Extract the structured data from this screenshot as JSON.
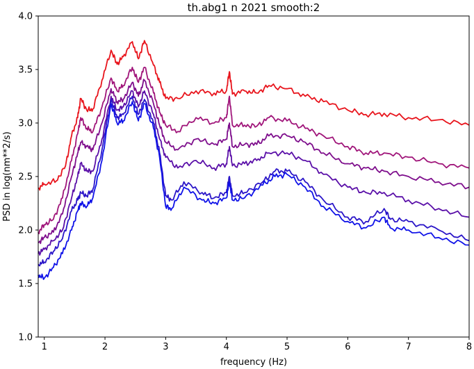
{
  "chart_data": {
    "type": "line",
    "title": "th.abg1 n 2021 smooth:2",
    "xlabel": "frequency (Hz)",
    "ylabel": "PSD in log(nm**2/s)",
    "xlim": [
      0.9,
      8.0
    ],
    "ylim": [
      1.0,
      4.0
    ],
    "xticks": [
      1,
      2,
      3,
      4,
      5,
      6,
      7,
      8
    ],
    "xtick_labels": [
      "1",
      "2",
      "3",
      "4",
      "5",
      "6",
      "7",
      "8"
    ],
    "yticks": [
      1.0,
      1.5,
      2.0,
      2.5,
      3.0,
      3.5,
      4.0
    ],
    "ytick_labels": [
      "1.0",
      "1.5",
      "2.0",
      "2.5",
      "3.0",
      "3.5",
      "4.0"
    ],
    "grid": false,
    "series": [
      {
        "color": "#e8141c",
        "points": [
          [
            0.9,
            2.39
          ],
          [
            1.0,
            2.43
          ],
          [
            1.2,
            2.46
          ],
          [
            1.35,
            2.6
          ],
          [
            1.45,
            2.88
          ],
          [
            1.55,
            3.05
          ],
          [
            1.6,
            3.23
          ],
          [
            1.7,
            3.12
          ],
          [
            1.8,
            3.13
          ],
          [
            1.95,
            3.4
          ],
          [
            2.1,
            3.68
          ],
          [
            2.2,
            3.55
          ],
          [
            2.3,
            3.62
          ],
          [
            2.45,
            3.76
          ],
          [
            2.55,
            3.6
          ],
          [
            2.65,
            3.77
          ],
          [
            2.8,
            3.54
          ],
          [
            2.9,
            3.38
          ],
          [
            3.0,
            3.23
          ],
          [
            3.2,
            3.23
          ],
          [
            3.5,
            3.3
          ],
          [
            3.8,
            3.28
          ],
          [
            4.0,
            3.3
          ],
          [
            4.05,
            3.48
          ],
          [
            4.1,
            3.27
          ],
          [
            4.3,
            3.3
          ],
          [
            4.5,
            3.28
          ],
          [
            4.7,
            3.35
          ],
          [
            5.0,
            3.32
          ],
          [
            5.3,
            3.25
          ],
          [
            5.6,
            3.2
          ],
          [
            6.0,
            3.12
          ],
          [
            6.3,
            3.08
          ],
          [
            6.6,
            3.09
          ],
          [
            7.0,
            3.05
          ],
          [
            7.5,
            3.03
          ],
          [
            8.0,
            2.98
          ]
        ]
      },
      {
        "color": "#a0157a",
        "points": [
          [
            0.9,
            1.98
          ],
          [
            1.0,
            2.05
          ],
          [
            1.15,
            2.1
          ],
          [
            1.3,
            2.3
          ],
          [
            1.45,
            2.65
          ],
          [
            1.55,
            2.9
          ],
          [
            1.6,
            3.05
          ],
          [
            1.7,
            2.95
          ],
          [
            1.8,
            2.92
          ],
          [
            1.95,
            3.15
          ],
          [
            2.1,
            3.42
          ],
          [
            2.2,
            3.3
          ],
          [
            2.3,
            3.35
          ],
          [
            2.45,
            3.52
          ],
          [
            2.55,
            3.38
          ],
          [
            2.65,
            3.52
          ],
          [
            2.8,
            3.28
          ],
          [
            2.9,
            3.1
          ],
          [
            3.0,
            2.98
          ],
          [
            3.2,
            2.92
          ],
          [
            3.5,
            3.05
          ],
          [
            3.8,
            3.0
          ],
          [
            4.0,
            3.05
          ],
          [
            4.05,
            3.25
          ],
          [
            4.1,
            2.98
          ],
          [
            4.3,
            2.98
          ],
          [
            4.5,
            2.97
          ],
          [
            4.7,
            3.05
          ],
          [
            5.0,
            3.02
          ],
          [
            5.3,
            2.95
          ],
          [
            5.6,
            2.88
          ],
          [
            6.0,
            2.78
          ],
          [
            6.3,
            2.72
          ],
          [
            6.6,
            2.72
          ],
          [
            7.0,
            2.68
          ],
          [
            7.5,
            2.62
          ],
          [
            8.0,
            2.58
          ]
        ]
      },
      {
        "color": "#7e0e8c",
        "points": [
          [
            0.9,
            1.88
          ],
          [
            1.0,
            1.93
          ],
          [
            1.15,
            1.98
          ],
          [
            1.3,
            2.15
          ],
          [
            1.45,
            2.5
          ],
          [
            1.55,
            2.72
          ],
          [
            1.6,
            2.82
          ],
          [
            1.7,
            2.78
          ],
          [
            1.8,
            2.75
          ],
          [
            1.95,
            3.0
          ],
          [
            2.1,
            3.32
          ],
          [
            2.2,
            3.2
          ],
          [
            2.3,
            3.22
          ],
          [
            2.45,
            3.38
          ],
          [
            2.55,
            3.25
          ],
          [
            2.65,
            3.4
          ],
          [
            2.8,
            3.18
          ],
          [
            2.9,
            2.98
          ],
          [
            3.0,
            2.82
          ],
          [
            3.2,
            2.75
          ],
          [
            3.5,
            2.85
          ],
          [
            3.8,
            2.8
          ],
          [
            4.0,
            2.85
          ],
          [
            4.05,
            3.0
          ],
          [
            4.1,
            2.78
          ],
          [
            4.3,
            2.8
          ],
          [
            4.5,
            2.8
          ],
          [
            4.7,
            2.88
          ],
          [
            5.0,
            2.88
          ],
          [
            5.3,
            2.82
          ],
          [
            5.6,
            2.72
          ],
          [
            6.0,
            2.62
          ],
          [
            6.3,
            2.58
          ],
          [
            6.6,
            2.55
          ],
          [
            7.0,
            2.5
          ],
          [
            7.5,
            2.45
          ],
          [
            8.0,
            2.4
          ]
        ]
      },
      {
        "color": "#5a0fa8",
        "points": [
          [
            0.9,
            1.78
          ],
          [
            1.0,
            1.82
          ],
          [
            1.15,
            1.9
          ],
          [
            1.3,
            2.0
          ],
          [
            1.45,
            2.3
          ],
          [
            1.55,
            2.5
          ],
          [
            1.6,
            2.62
          ],
          [
            1.7,
            2.55
          ],
          [
            1.8,
            2.55
          ],
          [
            1.95,
            2.85
          ],
          [
            2.1,
            3.25
          ],
          [
            2.2,
            3.12
          ],
          [
            2.3,
            3.15
          ],
          [
            2.45,
            3.3
          ],
          [
            2.55,
            3.15
          ],
          [
            2.65,
            3.3
          ],
          [
            2.8,
            3.08
          ],
          [
            2.9,
            2.85
          ],
          [
            3.0,
            2.68
          ],
          [
            3.2,
            2.58
          ],
          [
            3.5,
            2.65
          ],
          [
            3.8,
            2.58
          ],
          [
            4.0,
            2.62
          ],
          [
            4.05,
            2.78
          ],
          [
            4.1,
            2.6
          ],
          [
            4.3,
            2.62
          ],
          [
            4.5,
            2.65
          ],
          [
            4.7,
            2.72
          ],
          [
            5.0,
            2.72
          ],
          [
            5.3,
            2.65
          ],
          [
            5.6,
            2.52
          ],
          [
            6.0,
            2.4
          ],
          [
            6.3,
            2.35
          ],
          [
            6.6,
            2.35
          ],
          [
            7.0,
            2.28
          ],
          [
            7.5,
            2.2
          ],
          [
            8.0,
            2.12
          ]
        ]
      },
      {
        "color": "#2a15c8",
        "points": [
          [
            0.9,
            1.68
          ],
          [
            1.0,
            1.7
          ],
          [
            1.15,
            1.8
          ],
          [
            1.3,
            1.92
          ],
          [
            1.45,
            2.18
          ],
          [
            1.55,
            2.28
          ],
          [
            1.6,
            2.35
          ],
          [
            1.7,
            2.32
          ],
          [
            1.8,
            2.38
          ],
          [
            1.95,
            2.75
          ],
          [
            2.1,
            3.22
          ],
          [
            2.2,
            3.05
          ],
          [
            2.3,
            3.08
          ],
          [
            2.45,
            3.25
          ],
          [
            2.55,
            3.08
          ],
          [
            2.65,
            3.22
          ],
          [
            2.8,
            3.0
          ],
          [
            2.9,
            2.72
          ],
          [
            3.0,
            2.32
          ],
          [
            3.1,
            2.28
          ],
          [
            3.3,
            2.45
          ],
          [
            3.6,
            2.35
          ],
          [
            3.8,
            2.3
          ],
          [
            4.0,
            2.35
          ],
          [
            4.05,
            2.5
          ],
          [
            4.1,
            2.32
          ],
          [
            4.3,
            2.35
          ],
          [
            4.6,
            2.45
          ],
          [
            4.8,
            2.55
          ],
          [
            5.0,
            2.55
          ],
          [
            5.3,
            2.45
          ],
          [
            5.6,
            2.28
          ],
          [
            6.0,
            2.12
          ],
          [
            6.3,
            2.08
          ],
          [
            6.6,
            2.2
          ],
          [
            6.7,
            2.1
          ],
          [
            7.0,
            2.08
          ],
          [
            7.5,
            2.0
          ],
          [
            8.0,
            1.9
          ]
        ]
      },
      {
        "color": "#0f12e8",
        "points": [
          [
            0.9,
            1.58
          ],
          [
            1.0,
            1.55
          ],
          [
            1.15,
            1.65
          ],
          [
            1.3,
            1.78
          ],
          [
            1.45,
            2.0
          ],
          [
            1.55,
            2.18
          ],
          [
            1.6,
            2.25
          ],
          [
            1.7,
            2.22
          ],
          [
            1.8,
            2.3
          ],
          [
            1.95,
            2.65
          ],
          [
            2.1,
            3.18
          ],
          [
            2.2,
            3.0
          ],
          [
            2.3,
            3.02
          ],
          [
            2.45,
            3.2
          ],
          [
            2.55,
            3.02
          ],
          [
            2.65,
            3.18
          ],
          [
            2.8,
            2.95
          ],
          [
            2.9,
            2.68
          ],
          [
            3.0,
            2.22
          ],
          [
            3.1,
            2.2
          ],
          [
            3.3,
            2.4
          ],
          [
            3.6,
            2.28
          ],
          [
            3.8,
            2.25
          ],
          [
            4.0,
            2.3
          ],
          [
            4.05,
            2.45
          ],
          [
            4.1,
            2.28
          ],
          [
            4.3,
            2.3
          ],
          [
            4.6,
            2.42
          ],
          [
            4.8,
            2.5
          ],
          [
            5.0,
            2.52
          ],
          [
            5.3,
            2.4
          ],
          [
            5.6,
            2.22
          ],
          [
            6.0,
            2.08
          ],
          [
            6.3,
            2.02
          ],
          [
            6.6,
            2.12
          ],
          [
            6.7,
            2.02
          ],
          [
            7.0,
            2.0
          ],
          [
            7.5,
            1.93
          ],
          [
            8.0,
            1.86
          ]
        ]
      }
    ]
  }
}
